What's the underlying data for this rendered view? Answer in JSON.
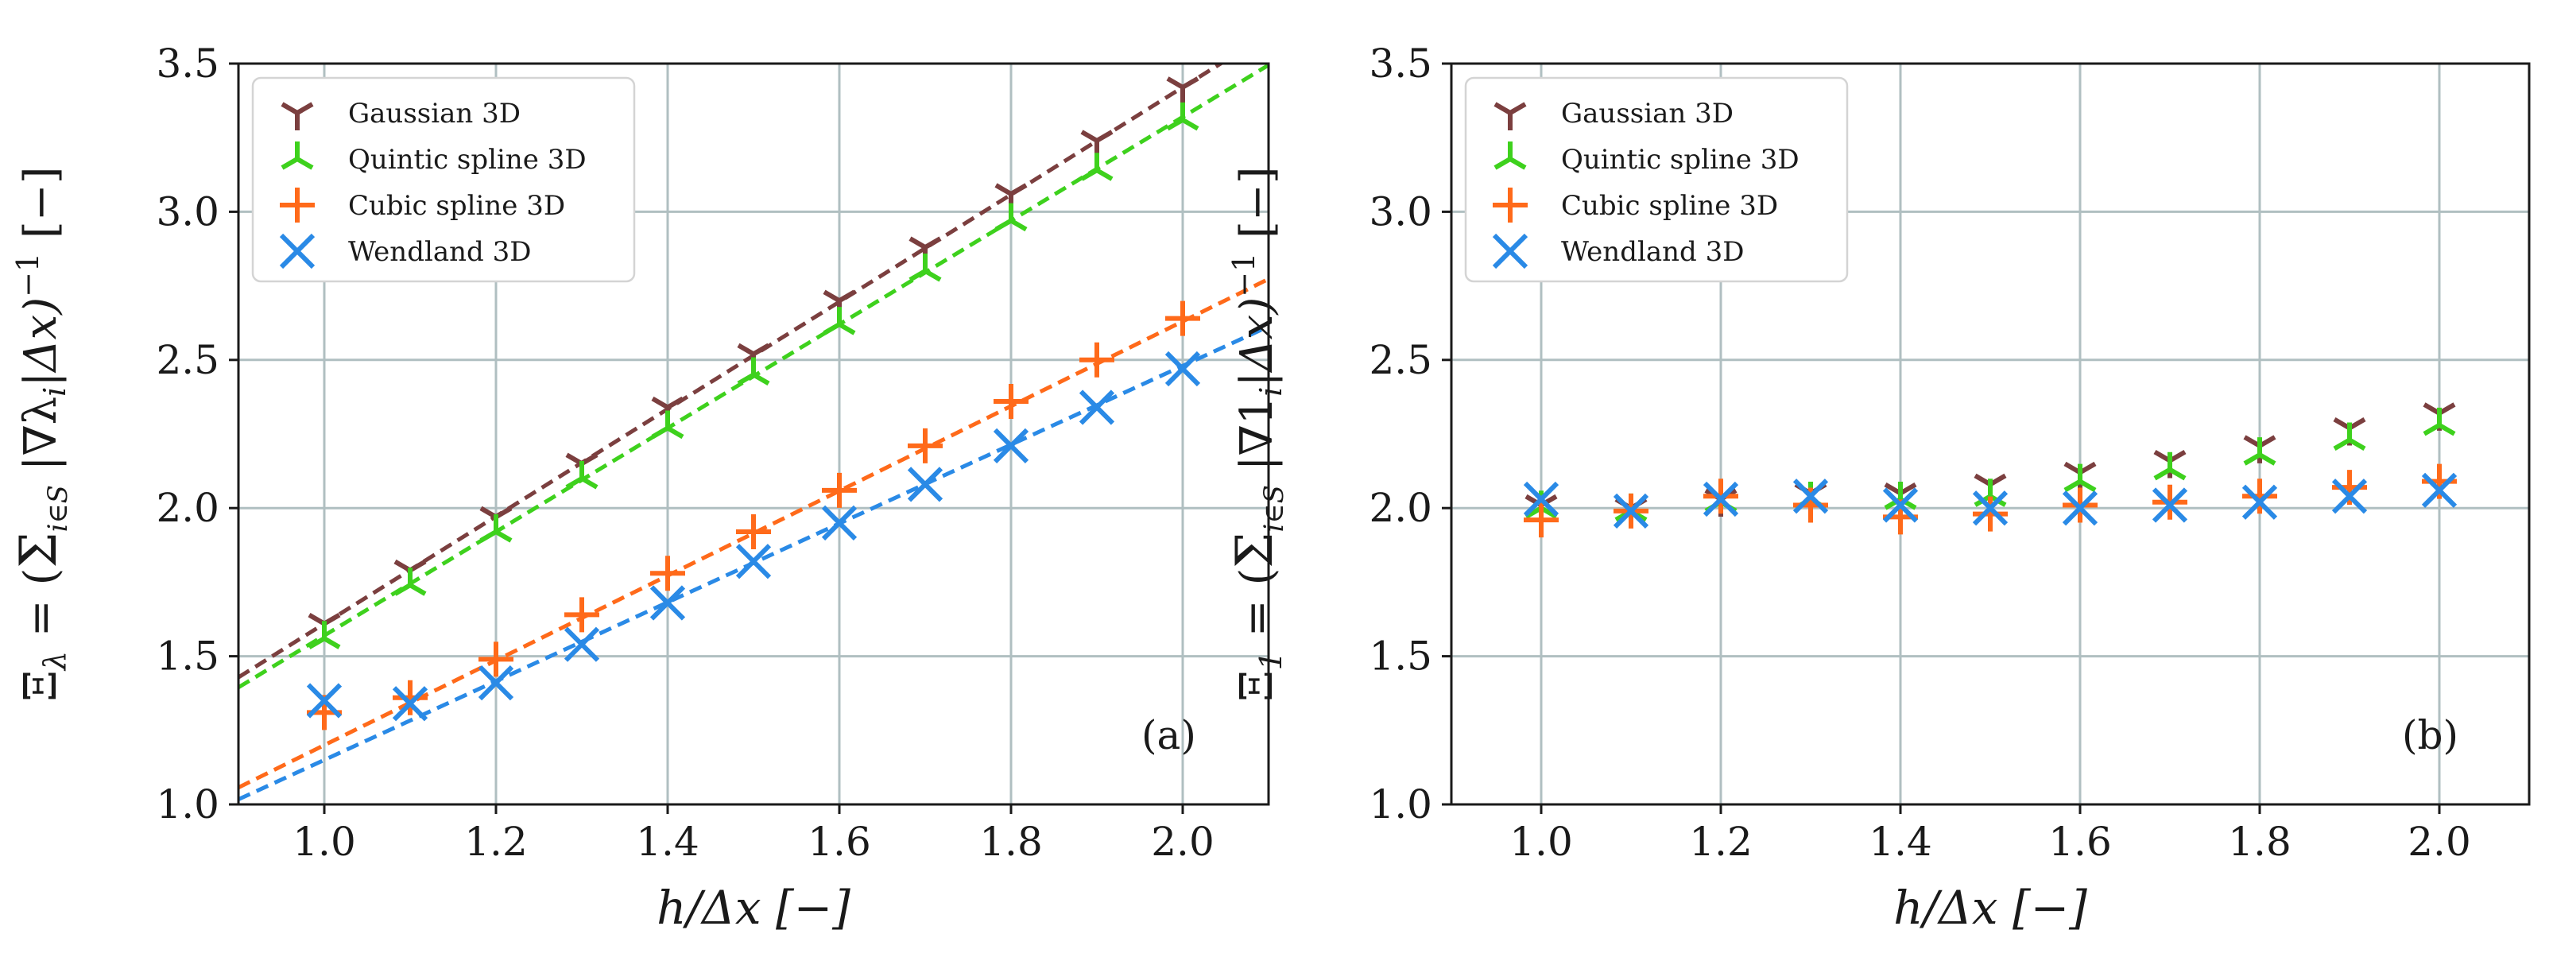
{
  "figure": {
    "series_styles": [
      {
        "name": "Gaussian 3D",
        "color": "#7b3f3f",
        "marker": "tri-down"
      },
      {
        "name": "Quintic spline 3D",
        "color": "#3ed11d",
        "marker": "tri-up"
      },
      {
        "name": "Cubic spline 3D",
        "color": "#ff6a1a",
        "marker": "plus"
      },
      {
        "name": "Wendland 3D",
        "color": "#2a8ae6",
        "marker": "x"
      }
    ]
  },
  "chart_data": [
    {
      "type": "scatter",
      "panel_label": "(a)",
      "xlabel": "h/Δx [−]",
      "ylabel": "Ξ_λ = (Σ_{i∈S} |∇λ_i| Δx)^{−1} [−]",
      "ylabel_parts": {
        "lhs": "Ξ",
        "lhs_sub": "λ",
        "eq": " = (",
        "sum": "Σ",
        "sum_sub": "i∈S",
        "body": " |∇λ",
        "body_sub": "i",
        "tail": "|Δx)",
        "tail_sup": "−1",
        "unit": " [−]"
      },
      "xlim": [
        0.9,
        2.1
      ],
      "ylim": [
        1.0,
        3.5
      ],
      "xticks": [
        "1.0",
        "1.2",
        "1.4",
        "1.6",
        "1.8",
        "2.0"
      ],
      "yticks": [
        "1.0",
        "1.5",
        "2.0",
        "2.5",
        "3.0",
        "3.5"
      ],
      "legend_position": "top-left",
      "grid": true,
      "x": [
        1.0,
        1.1,
        1.2,
        1.3,
        1.4,
        1.5,
        1.6,
        1.7,
        1.8,
        1.9,
        2.0
      ],
      "series": [
        {
          "name": "Gaussian 3D",
          "values": [
            1.61,
            1.79,
            1.97,
            2.15,
            2.34,
            2.52,
            2.7,
            2.88,
            3.06,
            3.24,
            3.42
          ],
          "fit": {
            "slope": 1.81,
            "intercept": -0.2
          }
        },
        {
          "name": "Quintic spline 3D",
          "values": [
            1.56,
            1.74,
            1.92,
            2.1,
            2.27,
            2.45,
            2.62,
            2.8,
            2.97,
            3.14,
            3.31
          ],
          "fit": {
            "slope": 1.75,
            "intercept": -0.18
          }
        },
        {
          "name": "Cubic spline 3D",
          "values": [
            1.31,
            1.36,
            1.49,
            1.64,
            1.78,
            1.92,
            2.06,
            2.21,
            2.36,
            2.5,
            2.64
          ],
          "fit": {
            "slope": 1.43,
            "intercept": -0.23
          }
        },
        {
          "name": "Wendland 3D",
          "values": [
            1.35,
            1.34,
            1.41,
            1.54,
            1.68,
            1.82,
            1.95,
            2.08,
            2.21,
            2.34,
            2.47
          ],
          "fit": {
            "slope": 1.33,
            "intercept": -0.18
          }
        }
      ]
    },
    {
      "type": "scatter",
      "panel_label": "(b)",
      "xlabel": "h/Δx [−]",
      "ylabel": "Ξ_1 = (Σ_{i∈S} |∇1_i| Δx)^{−1} [−]",
      "ylabel_parts": {
        "lhs": "Ξ",
        "lhs_sub": "1",
        "eq": " = (",
        "sum": "Σ",
        "sum_sub": "i∈S",
        "body": " |∇1",
        "body_sub": "i",
        "tail": "|Δx)",
        "tail_sup": "−1",
        "unit": " [−]"
      },
      "xlim": [
        0.9,
        2.1
      ],
      "ylim": [
        1.0,
        3.5
      ],
      "xticks": [
        "1.0",
        "1.2",
        "1.4",
        "1.6",
        "1.8",
        "2.0"
      ],
      "yticks": [
        "1.0",
        "1.5",
        "2.0",
        "2.5",
        "3.0",
        "3.5"
      ],
      "legend_position": "top-left",
      "grid": true,
      "x": [
        1.0,
        1.1,
        1.2,
        1.3,
        1.4,
        1.5,
        1.6,
        1.7,
        1.8,
        1.9,
        2.0
      ],
      "series": [
        {
          "name": "Gaussian 3D",
          "values": [
            2.01,
            2.0,
            2.03,
            2.05,
            2.05,
            2.08,
            2.12,
            2.16,
            2.21,
            2.27,
            2.32
          ]
        },
        {
          "name": "Quintic spline 3D",
          "values": [
            2.0,
            1.99,
            2.02,
            2.03,
            2.03,
            2.04,
            2.09,
            2.13,
            2.18,
            2.23,
            2.28
          ]
        },
        {
          "name": "Cubic spline 3D",
          "values": [
            1.96,
            1.99,
            2.04,
            2.01,
            1.97,
            1.98,
            2.01,
            2.02,
            2.04,
            2.07,
            2.09
          ]
        },
        {
          "name": "Wendland 3D",
          "values": [
            2.03,
            1.99,
            2.03,
            2.04,
            2.01,
            2.0,
            2.0,
            2.01,
            2.02,
            2.04,
            2.06
          ]
        }
      ]
    }
  ]
}
